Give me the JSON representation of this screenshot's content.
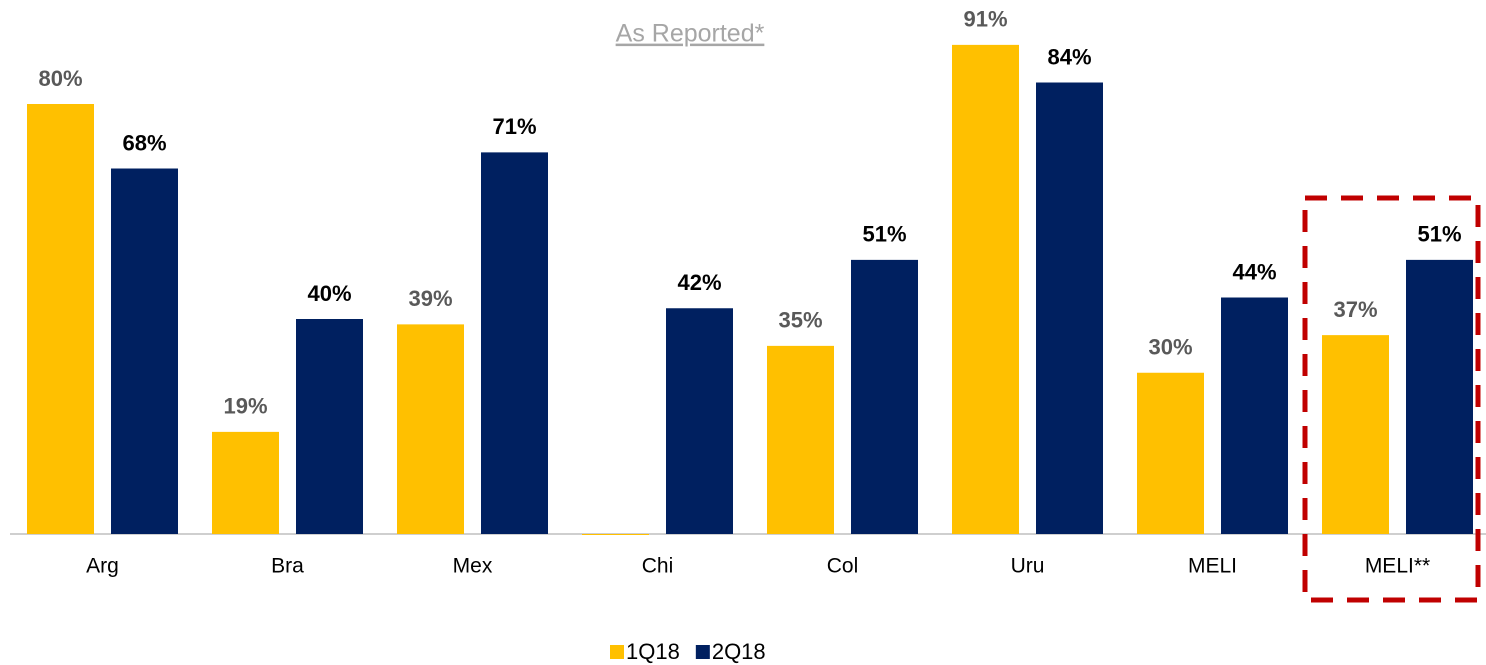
{
  "chart_data": {
    "type": "bar",
    "title": "As Reported*",
    "categories": [
      "Arg",
      "Bra",
      "Mex",
      "Chi",
      "Col",
      "Uru",
      "MELI",
      "MELI**"
    ],
    "series": [
      {
        "name": "1Q18",
        "color": "#ffc000",
        "label_color": "#595959",
        "values": [
          80,
          19,
          39,
          0,
          35,
          91,
          30,
          37
        ],
        "value_labels": [
          "80%",
          "19%",
          "39%",
          null,
          "35%",
          "91%",
          "30%",
          "37%"
        ]
      },
      {
        "name": "2Q18",
        "color": "#002060",
        "label_color": "#000000",
        "values": [
          68,
          40,
          71,
          42,
          51,
          84,
          44,
          51
        ],
        "value_labels": [
          "68%",
          "40%",
          "71%",
          "42%",
          "51%",
          "84%",
          "44%",
          "51%"
        ]
      }
    ],
    "ylim": [
      0,
      100
    ],
    "grid": false,
    "legend": "bottom"
  }
}
